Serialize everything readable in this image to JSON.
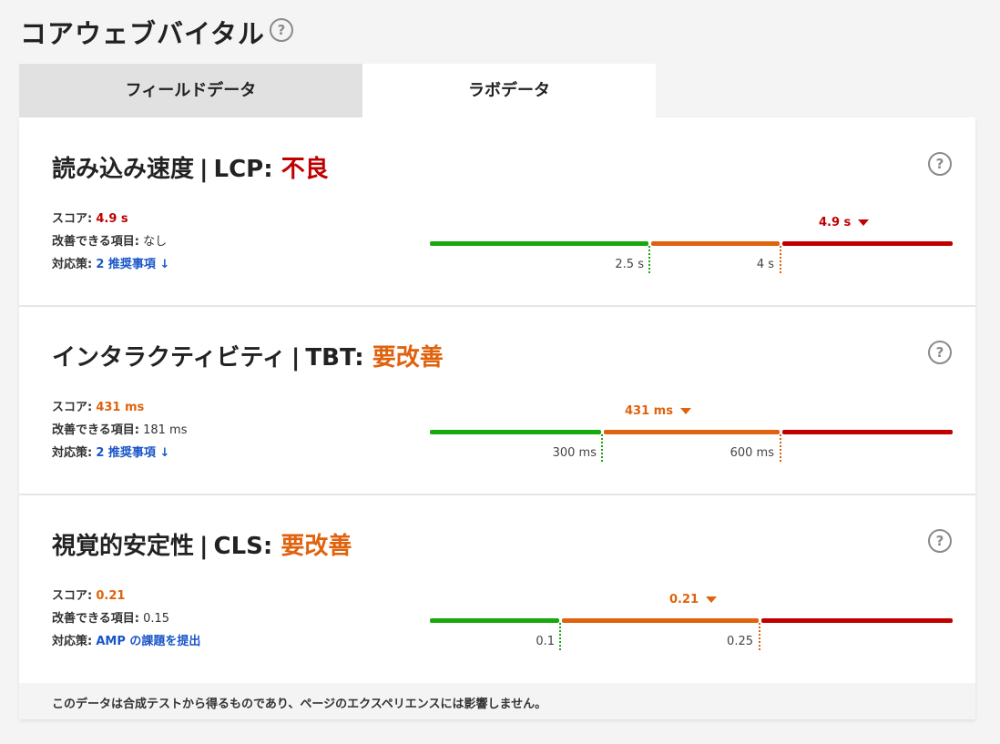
{
  "header": {
    "title": "コアウェブバイタル",
    "help": "?"
  },
  "tabs": [
    {
      "label": "フィールドデータ",
      "active": false
    },
    {
      "label": "ラボデータ",
      "active": true
    }
  ],
  "labels": {
    "score": "スコア:",
    "improvable": "改善できる項目:",
    "action": "対応策:"
  },
  "metrics": [
    {
      "title": "読み込み速度",
      "sep": "|",
      "metric": "LCP:",
      "status": "不良",
      "status_color": "#c00000",
      "score": "4.9 s",
      "improvable": "なし",
      "action": "2 推奨事項 ↓",
      "marker": "4.9 s",
      "thresholds": [
        "2.5 s",
        "4 s"
      ],
      "help": "?"
    },
    {
      "title": "インタラクティビティ",
      "sep": "|",
      "metric": "TBT:",
      "status": "要改善",
      "status_color": "#e0620d",
      "score": "431 ms",
      "improvable": "181 ms",
      "action": "2 推奨事項 ↓",
      "marker": "431 ms",
      "thresholds": [
        "300 ms",
        "600 ms"
      ],
      "help": "?"
    },
    {
      "title": "視覚的安定性",
      "sep": "|",
      "metric": "CLS:",
      "status": "要改善",
      "status_color": "#e0620d",
      "score": "0.21",
      "improvable": "0.15",
      "action": "AMP の課題を提出",
      "marker": "0.21",
      "thresholds": [
        "0.1",
        "0.25"
      ],
      "help": "?"
    }
  ],
  "footer": {
    "note": "このデータは合成テストから得るものであり、ページのエクスペリエンスには影響しません。"
  },
  "colors": {
    "good": "#17a80d",
    "needs_improvement": "#e0620d",
    "poor": "#c00000",
    "link": "#1a56c8"
  }
}
